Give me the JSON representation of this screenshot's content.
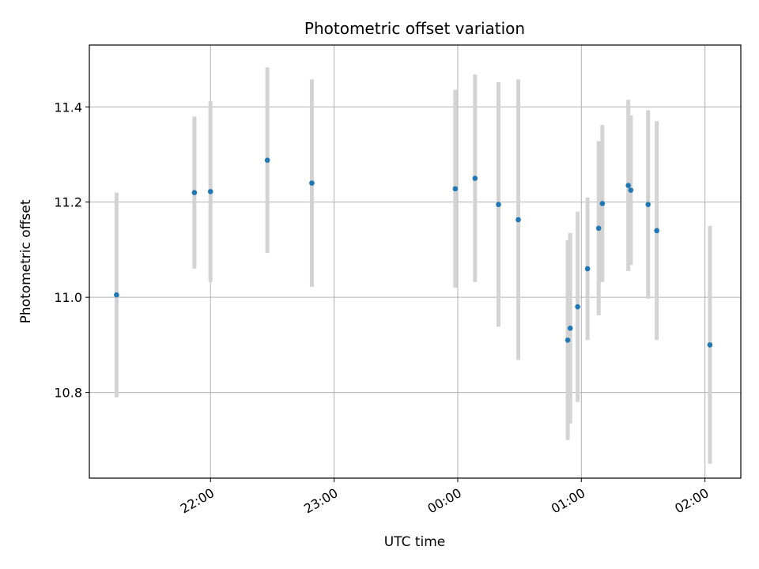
{
  "chart_data": {
    "type": "scatter",
    "title": "Photometric offset variation",
    "xlabel": "UTC time",
    "ylabel": "Photometric offset",
    "grid": true,
    "x_ticks": [
      "22:00",
      "23:00",
      "00:00",
      "01:00",
      "02:00"
    ],
    "x_tick_hours": [
      22,
      23,
      24,
      25,
      26
    ],
    "xlim_hours": [
      21.02,
      26.29
    ],
    "y_ticks": [
      10.8,
      11.0,
      11.2,
      11.4
    ],
    "ylim": [
      10.62,
      11.53
    ],
    "colors": {
      "point": "#1f77b4",
      "errorbar": "#d3d3d3",
      "grid": "#b0b0b0"
    },
    "points": [
      {
        "time": "21:14",
        "hours": 21.24,
        "y": 11.005,
        "err": 0.215
      },
      {
        "time": "21:52",
        "hours": 21.87,
        "y": 11.22,
        "err": 0.16
      },
      {
        "time": "22:00",
        "hours": 22.0,
        "y": 11.222,
        "err": 0.19
      },
      {
        "time": "22:27",
        "hours": 22.46,
        "y": 11.288,
        "err": 0.195
      },
      {
        "time": "22:49",
        "hours": 22.82,
        "y": 11.24,
        "err": 0.218
      },
      {
        "time": "23:58",
        "hours": 23.98,
        "y": 11.228,
        "err": 0.208
      },
      {
        "time": "00:08",
        "hours": 24.14,
        "y": 11.25,
        "err": 0.218
      },
      {
        "time": "00:20",
        "hours": 24.33,
        "y": 11.195,
        "err": 0.257
      },
      {
        "time": "00:29",
        "hours": 24.49,
        "y": 11.163,
        "err": 0.295
      },
      {
        "time": "00:53",
        "hours": 24.89,
        "y": 10.91,
        "err": 0.21
      },
      {
        "time": "00:55",
        "hours": 24.91,
        "y": 10.935,
        "err": 0.2
      },
      {
        "time": "00:58",
        "hours": 24.97,
        "y": 10.98,
        "err": 0.2
      },
      {
        "time": "01:03",
        "hours": 25.05,
        "y": 11.06,
        "err": 0.15
      },
      {
        "time": "01:08",
        "hours": 25.14,
        "y": 11.145,
        "err": 0.183
      },
      {
        "time": "01:10",
        "hours": 25.17,
        "y": 11.197,
        "err": 0.165
      },
      {
        "time": "01:23",
        "hours": 25.38,
        "y": 11.235,
        "err": 0.18
      },
      {
        "time": "01:24",
        "hours": 25.4,
        "y": 11.225,
        "err": 0.157
      },
      {
        "time": "01:32",
        "hours": 25.54,
        "y": 11.195,
        "err": 0.198
      },
      {
        "time": "01:37",
        "hours": 25.61,
        "y": 11.14,
        "err": 0.23
      },
      {
        "time": "02:03",
        "hours": 26.04,
        "y": 10.9,
        "err": 0.25
      }
    ]
  }
}
